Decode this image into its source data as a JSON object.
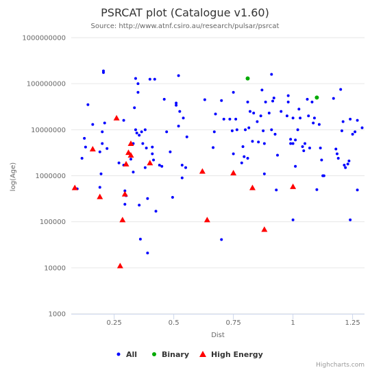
{
  "chart_data": {
    "type": "scatter",
    "title": "PSRCAT plot (Catalogue v1.60)",
    "subtitle": "Source: http://www.atnf.csiro.au/research/pulsar/psrcat",
    "xlabel": "Dist",
    "ylabel": "log(Age)",
    "xlim": [
      0.07,
      1.3
    ],
    "ylim": [
      1000,
      1000000000
    ],
    "y_scale": "log",
    "x_ticks": [
      0.25,
      0.5,
      0.75,
      1,
      1.25
    ],
    "x_tick_labels": [
      "0.25",
      "0.5",
      "0.75",
      "1",
      "1.25"
    ],
    "y_ticks": [
      1000,
      10000,
      100000,
      1000000,
      10000000,
      100000000,
      1000000000
    ],
    "y_tick_labels": [
      "1000",
      "10000",
      "100000",
      "1000000",
      "10000000",
      "100000000",
      "1000000000"
    ],
    "grid": "horizontal",
    "legend_position": "bottom",
    "credits": "Highcharts.com",
    "series": [
      {
        "name": "All",
        "marker": "circle",
        "color": "#0000ff",
        "points": [
          [
            0.095,
            520000
          ],
          [
            0.115,
            2400000
          ],
          [
            0.125,
            6500000
          ],
          [
            0.13,
            4200000
          ],
          [
            0.14,
            35000000
          ],
          [
            0.16,
            13000000
          ],
          [
            0.19,
            3300000
          ],
          [
            0.19,
            560000
          ],
          [
            0.195,
            1100000
          ],
          [
            0.2,
            5000000
          ],
          [
            0.2,
            9000000
          ],
          [
            0.205,
            190000000
          ],
          [
            0.205,
            175000000
          ],
          [
            0.21,
            14000000
          ],
          [
            0.22,
            3900000
          ],
          [
            0.27,
            1900000
          ],
          [
            0.29,
            16000000
          ],
          [
            0.29,
            1700000
          ],
          [
            0.295,
            240000
          ],
          [
            0.295,
            470000
          ],
          [
            0.3,
            370000
          ],
          [
            0.32,
            2300000
          ],
          [
            0.33,
            1200000
          ],
          [
            0.33,
            5000000
          ],
          [
            0.335,
            30000000
          ],
          [
            0.34,
            130000000
          ],
          [
            0.34,
            10000000
          ],
          [
            0.345,
            8500000
          ],
          [
            0.35,
            100000000
          ],
          [
            0.35,
            65000000
          ],
          [
            0.355,
            7600000
          ],
          [
            0.355,
            230000
          ],
          [
            0.36,
            42000
          ],
          [
            0.365,
            9000000
          ],
          [
            0.37,
            5000000
          ],
          [
            0.38,
            10000000
          ],
          [
            0.38,
            1500000
          ],
          [
            0.385,
            4000000
          ],
          [
            0.39,
            21000
          ],
          [
            0.39,
            320000
          ],
          [
            0.4,
            125000000
          ],
          [
            0.41,
            4200000
          ],
          [
            0.41,
            3000000
          ],
          [
            0.415,
            2200000
          ],
          [
            0.42,
            125000000
          ],
          [
            0.425,
            170000
          ],
          [
            0.44,
            1700000
          ],
          [
            0.45,
            1600000
          ],
          [
            0.46,
            46000000
          ],
          [
            0.47,
            9000000
          ],
          [
            0.485,
            3300000
          ],
          [
            0.495,
            340000
          ],
          [
            0.51,
            38000000
          ],
          [
            0.51,
            34000000
          ],
          [
            0.52,
            12000000
          ],
          [
            0.52,
            150000000
          ],
          [
            0.525,
            25000000
          ],
          [
            0.535,
            900000
          ],
          [
            0.535,
            1700000
          ],
          [
            0.54,
            18000000
          ],
          [
            0.55,
            1500000
          ],
          [
            0.555,
            7000000
          ],
          [
            0.63,
            45000000
          ],
          [
            0.665,
            4100000
          ],
          [
            0.67,
            9000000
          ],
          [
            0.675,
            22000000
          ],
          [
            0.7,
            43000000
          ],
          [
            0.7,
            41000
          ],
          [
            0.71,
            17000000
          ],
          [
            0.735,
            17000000
          ],
          [
            0.745,
            9500000
          ],
          [
            0.75,
            3000000
          ],
          [
            0.75,
            65000000
          ],
          [
            0.76,
            17000000
          ],
          [
            0.765,
            10000000
          ],
          [
            0.785,
            1900000
          ],
          [
            0.79,
            4300000
          ],
          [
            0.795,
            2600000
          ],
          [
            0.8,
            10000000
          ],
          [
            0.81,
            40000000
          ],
          [
            0.81,
            2400000
          ],
          [
            0.815,
            11000000
          ],
          [
            0.82,
            25000000
          ],
          [
            0.83,
            5600000
          ],
          [
            0.835,
            23000000
          ],
          [
            0.85,
            15000000
          ],
          [
            0.855,
            5400000
          ],
          [
            0.865,
            20000000
          ],
          [
            0.87,
            73000000
          ],
          [
            0.875,
            9500000
          ],
          [
            0.88,
            5000000
          ],
          [
            0.88,
            1100000
          ],
          [
            0.885,
            40000000
          ],
          [
            0.9,
            23000000
          ],
          [
            0.91,
            10000000
          ],
          [
            0.91,
            160000000
          ],
          [
            0.915,
            42000000
          ],
          [
            0.92,
            49000000
          ],
          [
            0.925,
            8000000
          ],
          [
            0.93,
            490000
          ],
          [
            0.935,
            2800000
          ],
          [
            0.95,
            25000000
          ],
          [
            0.975,
            20000000
          ],
          [
            0.98,
            40000000
          ],
          [
            0.98,
            55000000
          ],
          [
            0.99,
            5000000
          ],
          [
            0.99,
            6200000
          ],
          [
            1.0,
            18000000
          ],
          [
            1.0,
            5000000
          ],
          [
            1.0,
            110000
          ],
          [
            1.01,
            6000000
          ],
          [
            1.01,
            1600000
          ],
          [
            1.02,
            10000000
          ],
          [
            1.025,
            28000000
          ],
          [
            1.03,
            18000000
          ],
          [
            1.04,
            4300000
          ],
          [
            1.045,
            3500000
          ],
          [
            1.05,
            5000000
          ],
          [
            1.06,
            46000000
          ],
          [
            1.065,
            20000000
          ],
          [
            1.07,
            4000000
          ],
          [
            1.08,
            40000000
          ],
          [
            1.085,
            14000000
          ],
          [
            1.09,
            18000000
          ],
          [
            1.1,
            500000
          ],
          [
            1.11,
            13000000
          ],
          [
            1.115,
            4000000
          ],
          [
            1.12,
            2200000
          ],
          [
            1.125,
            1000000
          ],
          [
            1.13,
            1000000
          ],
          [
            1.17,
            48000000
          ],
          [
            1.18,
            3800000
          ],
          [
            1.185,
            3000000
          ],
          [
            1.19,
            2400000
          ],
          [
            1.2,
            75000000
          ],
          [
            1.205,
            9500000
          ],
          [
            1.21,
            15000000
          ],
          [
            1.215,
            1700000
          ],
          [
            1.22,
            1500000
          ],
          [
            1.23,
            1800000
          ],
          [
            1.235,
            2100000
          ],
          [
            1.24,
            17000000
          ],
          [
            1.24,
            110000
          ],
          [
            1.25,
            8000000
          ],
          [
            1.26,
            9000000
          ],
          [
            1.27,
            16000000
          ],
          [
            1.27,
            490000
          ],
          [
            1.29,
            11000000
          ]
        ]
      },
      {
        "name": "Binary",
        "marker": "circle",
        "color": "#00aa00",
        "points": [
          [
            0.81,
            130000000
          ],
          [
            1.1,
            50000000
          ]
        ]
      },
      {
        "name": "High Energy",
        "marker": "triangle",
        "color": "#ff0000",
        "points": [
          [
            0.085,
            550000
          ],
          [
            0.16,
            3800000
          ],
          [
            0.19,
            350000
          ],
          [
            0.26,
            18000000
          ],
          [
            0.275,
            11000
          ],
          [
            0.285,
            110000
          ],
          [
            0.295,
            400000
          ],
          [
            0.3,
            1800000
          ],
          [
            0.31,
            3200000
          ],
          [
            0.32,
            5000000
          ],
          [
            0.32,
            2800000
          ],
          [
            0.4,
            1900000
          ],
          [
            0.62,
            1250000
          ],
          [
            0.64,
            110000
          ],
          [
            0.75,
            1150000
          ],
          [
            0.83,
            550000
          ],
          [
            0.88,
            68000
          ],
          [
            1.0,
            580000
          ]
        ]
      }
    ]
  }
}
